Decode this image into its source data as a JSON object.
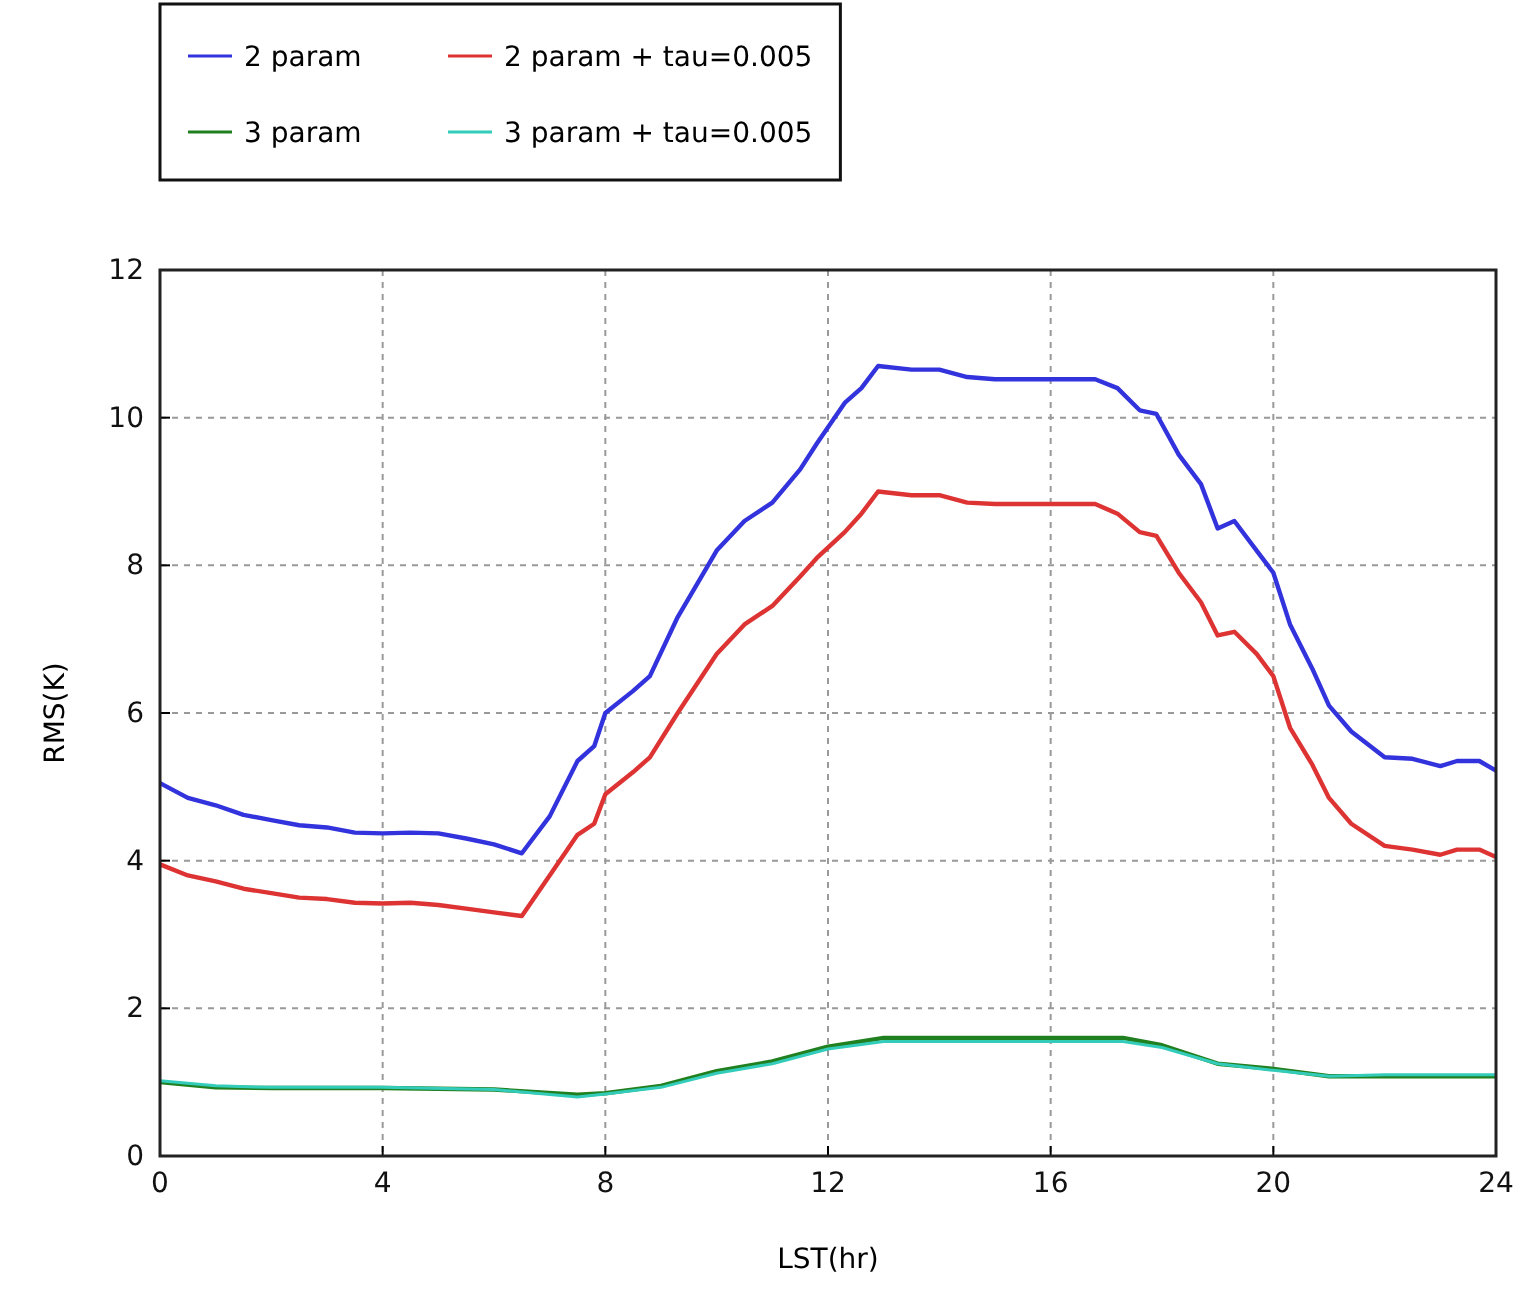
{
  "chart_data": {
    "type": "line",
    "xlabel": "LST(hr)",
    "ylabel": "RMS(K)",
    "xlim": [
      0,
      24
    ],
    "ylim": [
      0,
      12
    ],
    "xticks": [
      0,
      4,
      8,
      12,
      16,
      20,
      24
    ],
    "yticks": [
      0,
      2,
      4,
      6,
      8,
      10,
      12
    ],
    "grid": true,
    "legend": "top left",
    "line_style": "solid",
    "marker": "none",
    "series": [
      {
        "name": "2 param",
        "color": "#3333dd",
        "x": [
          0,
          0.5,
          1,
          1.5,
          2,
          2.5,
          3,
          3.5,
          4,
          4.5,
          5,
          5.5,
          6,
          6.5,
          7,
          7.5,
          7.8,
          8,
          8.5,
          8.8,
          9.3,
          10,
          10.5,
          11,
          11.5,
          11.8,
          12.3,
          12.6,
          12.9,
          13.5,
          14,
          14.5,
          15,
          16,
          16.8,
          17.2,
          17.6,
          17.9,
          18.3,
          18.7,
          19,
          19.3,
          19.7,
          20,
          20.3,
          20.7,
          21,
          21.4,
          22,
          22.5,
          23,
          23.3,
          23.7,
          24
        ],
        "values": [
          5.05,
          4.85,
          4.75,
          4.62,
          4.55,
          4.48,
          4.45,
          4.38,
          4.37,
          4.38,
          4.37,
          4.3,
          4.22,
          4.1,
          4.6,
          5.35,
          5.55,
          6.0,
          6.3,
          6.5,
          7.3,
          8.2,
          8.6,
          8.85,
          9.3,
          9.65,
          10.2,
          10.4,
          10.7,
          10.65,
          10.65,
          10.55,
          10.52,
          10.52,
          10.52,
          10.4,
          10.1,
          10.05,
          9.5,
          9.1,
          8.5,
          8.6,
          8.2,
          7.9,
          7.2,
          6.6,
          6.1,
          5.75,
          5.4,
          5.38,
          5.28,
          5.35,
          5.35,
          5.22
        ]
      },
      {
        "name": "3 param",
        "color": "#208020",
        "x": [
          0,
          1,
          2,
          4,
          6,
          7.5,
          8,
          9,
          10,
          11,
          12,
          13,
          14,
          16,
          17.3,
          18,
          19,
          20,
          21,
          22,
          24
        ],
        "values": [
          1.0,
          0.93,
          0.92,
          0.92,
          0.9,
          0.83,
          0.85,
          0.95,
          1.15,
          1.28,
          1.48,
          1.6,
          1.6,
          1.6,
          1.6,
          1.5,
          1.25,
          1.18,
          1.08,
          1.08,
          1.08
        ]
      },
      {
        "name": "2 param + tau=0.005",
        "color": "#dd3333",
        "x": [
          0,
          0.5,
          1,
          1.5,
          2,
          2.5,
          3,
          3.5,
          4,
          4.5,
          5,
          5.5,
          6,
          6.5,
          7,
          7.5,
          7.8,
          8,
          8.5,
          8.8,
          9.3,
          10,
          10.5,
          11,
          11.5,
          11.8,
          12.3,
          12.6,
          12.9,
          13.5,
          14,
          14.5,
          15,
          16,
          16.8,
          17.2,
          17.6,
          17.9,
          18.3,
          18.7,
          19,
          19.3,
          19.7,
          20,
          20.3,
          20.7,
          21,
          21.4,
          22,
          22.5,
          23,
          23.3,
          23.7,
          24
        ],
        "values": [
          3.95,
          3.8,
          3.72,
          3.62,
          3.56,
          3.5,
          3.48,
          3.43,
          3.42,
          3.43,
          3.4,
          3.35,
          3.3,
          3.25,
          3.8,
          4.35,
          4.5,
          4.9,
          5.2,
          5.4,
          6.0,
          6.8,
          7.2,
          7.45,
          7.85,
          8.1,
          8.45,
          8.7,
          9.0,
          8.95,
          8.95,
          8.85,
          8.83,
          8.83,
          8.83,
          8.7,
          8.45,
          8.4,
          7.9,
          7.5,
          7.05,
          7.1,
          6.8,
          6.5,
          5.8,
          5.3,
          4.85,
          4.5,
          4.2,
          4.15,
          4.08,
          4.15,
          4.15,
          4.05
        ]
      },
      {
        "name": "3 param + tau=0.005",
        "color": "#33ccbb",
        "x": [
          0,
          1,
          2,
          4,
          6,
          7.5,
          8,
          9,
          10,
          11,
          12,
          13,
          14,
          16,
          17.3,
          18,
          19,
          20,
          21,
          22,
          24
        ],
        "values": [
          1.02,
          0.95,
          0.93,
          0.93,
          0.9,
          0.8,
          0.84,
          0.93,
          1.12,
          1.25,
          1.45,
          1.55,
          1.55,
          1.55,
          1.55,
          1.47,
          1.25,
          1.16,
          1.08,
          1.1,
          1.1
        ]
      }
    ]
  }
}
